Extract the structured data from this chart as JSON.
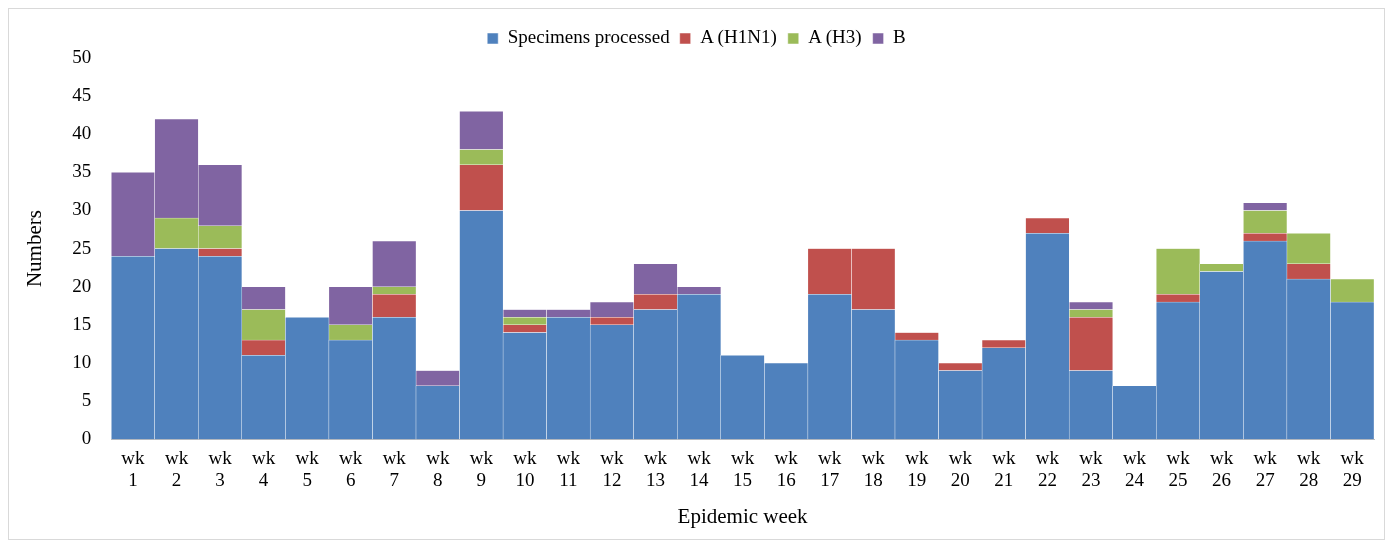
{
  "chart_data": {
    "type": "bar",
    "stacked": true,
    "xlabel": "Epidemic week",
    "ylabel": "Numbers",
    "categories": [
      "wk 1",
      "wk 2",
      "wk 3",
      "wk 4",
      "wk 5",
      "wk 6",
      "wk 7",
      "wk 8",
      "wk 9",
      "wk 10",
      "wk 11",
      "wk 12",
      "wk 13",
      "wk 14",
      "wk 15",
      "wk 16",
      "wk 17",
      "wk 18",
      "wk 19",
      "wk 20",
      "wk 21",
      "wk 22",
      "wk 23",
      "wk 24",
      "wk 25",
      "wk 26",
      "wk 27",
      "wk 28",
      "wk 29"
    ],
    "series": [
      {
        "name": "Specimens processed",
        "color": "#4f81bd",
        "values": [
          24,
          25,
          24,
          11,
          16,
          13,
          16,
          7,
          30,
          14,
          16,
          15,
          17,
          19,
          11,
          10,
          19,
          17,
          13,
          9,
          12,
          27,
          9,
          7,
          18,
          22,
          26,
          21,
          18
        ]
      },
      {
        "name": "A (H1N1)",
        "color": "#c0504d",
        "values": [
          0,
          0,
          1,
          2,
          0,
          0,
          3,
          0,
          6,
          1,
          0,
          1,
          2,
          0,
          0,
          0,
          6,
          8,
          1,
          1,
          1,
          2,
          7,
          0,
          1,
          0,
          1,
          2,
          0
        ]
      },
      {
        "name": "A (H3)",
        "color": "#9bbb59",
        "values": [
          0,
          4,
          3,
          4,
          0,
          2,
          1,
          0,
          2,
          1,
          0,
          0,
          0,
          0,
          0,
          0,
          0,
          0,
          0,
          0,
          0,
          0,
          1,
          0,
          6,
          1,
          3,
          4,
          3
        ]
      },
      {
        "name": "B",
        "color": "#8064a2",
        "values": [
          11,
          13,
          8,
          3,
          0,
          5,
          6,
          2,
          5,
          1,
          1,
          2,
          4,
          1,
          0,
          0,
          0,
          0,
          0,
          0,
          0,
          0,
          1,
          0,
          0,
          0,
          1,
          0,
          0
        ]
      }
    ],
    "ylim": [
      0,
      50
    ],
    "yticks": [
      0,
      5,
      10,
      15,
      20,
      25,
      30,
      35,
      40,
      45,
      50
    ],
    "grid": false,
    "legend": "top"
  }
}
